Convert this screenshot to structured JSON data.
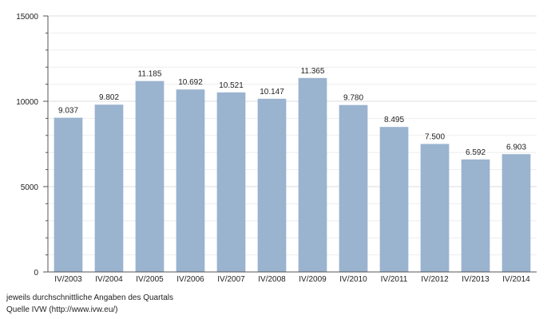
{
  "chart_data": {
    "type": "bar",
    "categories": [
      "IV/2003",
      "IV/2004",
      "IV/2005",
      "IV/2006",
      "IV/2007",
      "IV/2008",
      "IV/2009",
      "IV/2010",
      "IV/2011",
      "IV/2012",
      "IV/2013",
      "IV/2014"
    ],
    "values": [
      9037,
      9802,
      11185,
      10692,
      10521,
      10147,
      11365,
      9780,
      8495,
      7500,
      6592,
      6903
    ],
    "value_labels": [
      "9.037",
      "9.802",
      "11.185",
      "10.692",
      "10.521",
      "10.147",
      "11.365",
      "9.780",
      "8.495",
      "7.500",
      "6.592",
      "6.903"
    ],
    "color": "#9ab3cf",
    "ylim": [
      0,
      15000
    ],
    "yticks": [
      0,
      5000,
      10000,
      15000
    ],
    "grid": true,
    "notes": [
      "jeweils durchschnittliche Angaben des Quartals",
      "Quelle IVW (http://www.ivw.eu/)"
    ]
  }
}
